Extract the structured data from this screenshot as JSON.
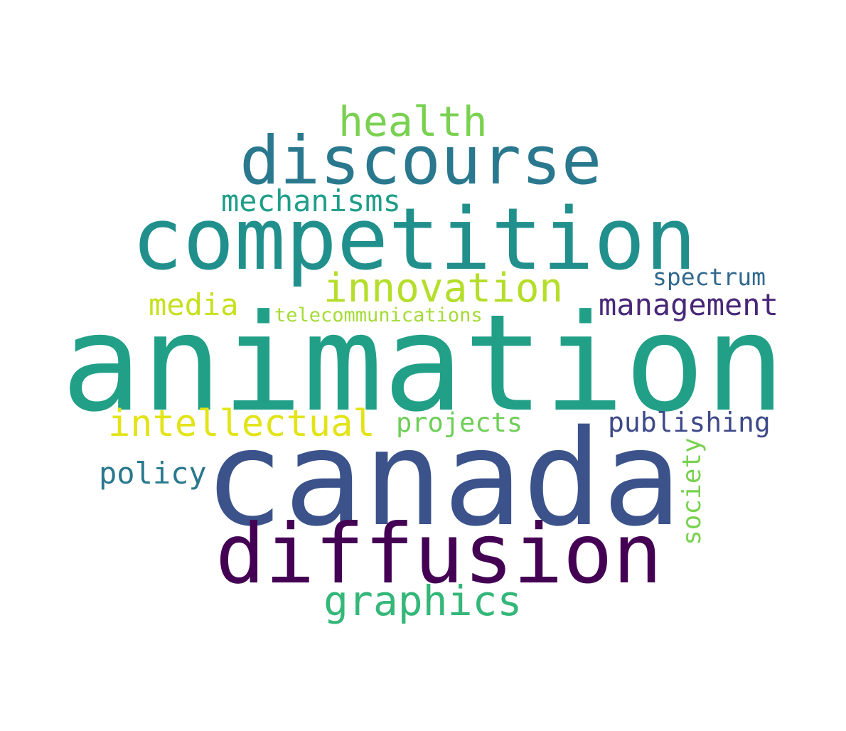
{
  "words": [
    {
      "id": "animation",
      "text": "animation",
      "color": "#21a087"
    },
    {
      "id": "canada",
      "text": "canada",
      "color": "#3b528b"
    },
    {
      "id": "competition",
      "text": "competition",
      "color": "#21908c"
    },
    {
      "id": "diffusion",
      "text": "diffusion",
      "color": "#440154"
    },
    {
      "id": "discourse",
      "text": "discourse",
      "color": "#2a788e"
    },
    {
      "id": "graphics",
      "text": "graphics",
      "color": "#35b779"
    },
    {
      "id": "health",
      "text": "health",
      "color": "#7ad151"
    },
    {
      "id": "intellectual",
      "text": "intellectual",
      "color": "#e2e418"
    },
    {
      "id": "innovation",
      "text": "innovation",
      "color": "#b5de2b"
    },
    {
      "id": "mechanisms",
      "text": "mechanisms",
      "color": "#1f9e89"
    },
    {
      "id": "management",
      "text": "management",
      "color": "#482878"
    },
    {
      "id": "policy",
      "text": "policy",
      "color": "#2a788e"
    },
    {
      "id": "publishing",
      "text": "publishing",
      "color": "#3e4989"
    },
    {
      "id": "projects",
      "text": "projects",
      "color": "#6ece58"
    },
    {
      "id": "media",
      "text": "media",
      "color": "#c8e020"
    },
    {
      "id": "spectrum",
      "text": "spectrum",
      "color": "#31688e"
    },
    {
      "id": "telecommunications",
      "text": "telecommunications",
      "color": "#a5db36"
    },
    {
      "id": "society",
      "text": "society",
      "color": "#7ad151"
    }
  ]
}
